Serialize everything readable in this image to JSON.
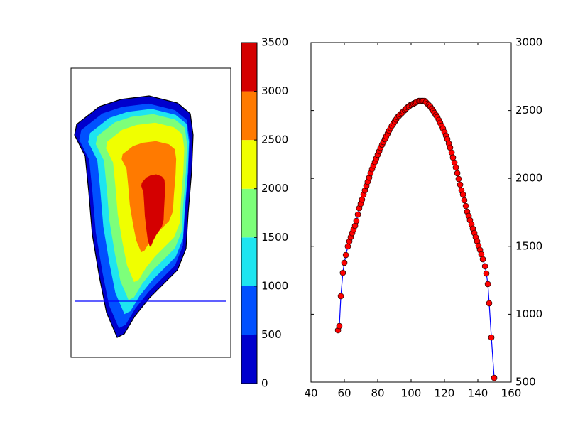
{
  "chart_data": [
    {
      "type": "contour",
      "ylim": [
        0,
        3500
      ],
      "yticks": [
        0,
        500,
        1000,
        1500,
        2000,
        2500,
        3000,
        3500
      ],
      "colors": [
        "#0000cd",
        "#0050ff",
        "#1ee5f0",
        "#7dff7a",
        "#f0ff00",
        "#ff7a00",
        "#d40000"
      ]
    },
    {
      "type": "line",
      "color": "#0000ff",
      "marker_color": "#ff0000",
      "xlim": [
        40,
        160
      ],
      "ylim": [
        500,
        3000
      ],
      "xticks": [
        40,
        60,
        80,
        100,
        120,
        140,
        160
      ],
      "yticks": [
        500,
        1000,
        1500,
        2000,
        2500,
        3000
      ],
      "y_axis_side": "right",
      "x": [
        56.2,
        57.0,
        57.9,
        59.1,
        60.0,
        60.9,
        62.1,
        63.0,
        63.8,
        64.7,
        65.5,
        66.4,
        67.2,
        68.1,
        68.9,
        69.8,
        70.6,
        71.5,
        72.3,
        73.2,
        74.0,
        74.9,
        75.7,
        76.6,
        77.4,
        78.3,
        79.1,
        80.0,
        80.9,
        81.7,
        82.6,
        83.4,
        84.3,
        85.1,
        86.0,
        86.8,
        87.7,
        88.5,
        89.4,
        90.2,
        91.1,
        91.9,
        92.8,
        93.6,
        94.5,
        95.3,
        96.2,
        97.0,
        97.9,
        98.7,
        99.6,
        100.4,
        101.3,
        102.1,
        103.0,
        103.8,
        104.7,
        105.5,
        106.4,
        107.2,
        108.1,
        108.9,
        109.8,
        110.6,
        111.5,
        112.3,
        113.2,
        114.0,
        114.9,
        115.7,
        116.6,
        117.4,
        118.3,
        119.1,
        120.0,
        120.9,
        121.7,
        122.6,
        123.4,
        124.3,
        125.1,
        126.0,
        126.8,
        127.7,
        128.5,
        129.4,
        130.2,
        131.1,
        131.9,
        132.8,
        133.6,
        134.5,
        135.3,
        136.2,
        137.0,
        137.9,
        138.7,
        139.6,
        140.4,
        141.3,
        142.1,
        143.0,
        144.3,
        145.1,
        146.0,
        146.8,
        148.1,
        149.8
      ],
      "values": [
        882,
        913,
        1133,
        1305,
        1379,
        1436,
        1499,
        1536,
        1567,
        1598,
        1624,
        1651,
        1687,
        1734,
        1781,
        1813,
        1844,
        1881,
        1912,
        1944,
        1975,
        2006,
        2038,
        2069,
        2095,
        2121,
        2147,
        2174,
        2200,
        2226,
        2248,
        2268,
        2289,
        2310,
        2331,
        2352,
        2372,
        2388,
        2404,
        2419,
        2435,
        2451,
        2461,
        2472,
        2482,
        2493,
        2503,
        2514,
        2524,
        2529,
        2540,
        2545,
        2550,
        2555,
        2561,
        2566,
        2571,
        2571,
        2571,
        2571,
        2571,
        2561,
        2550,
        2540,
        2529,
        2514,
        2498,
        2482,
        2466,
        2451,
        2430,
        2409,
        2388,
        2367,
        2341,
        2315,
        2289,
        2257,
        2226,
        2190,
        2153,
        2116,
        2080,
        2038,
        1996,
        1954,
        1912,
        1881,
        1839,
        1797,
        1755,
        1724,
        1692,
        1661,
        1630,
        1598,
        1567,
        1536,
        1504,
        1473,
        1441,
        1405,
        1353,
        1300,
        1222,
        1081,
        829,
        531
      ]
    }
  ]
}
